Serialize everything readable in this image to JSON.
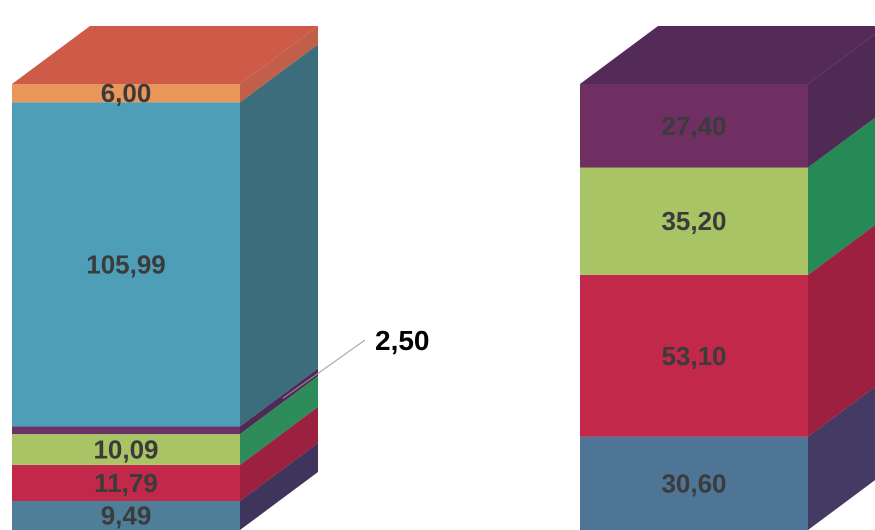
{
  "chart_data": {
    "type": "bar",
    "stacked": true,
    "three_d": true,
    "legend": "none",
    "grid": false,
    "axes_visible": false,
    "bars": [
      {
        "segments": [
          {
            "value": 9.49,
            "label": "9,49",
            "color": "#4f7f98",
            "side": "#3f345c"
          },
          {
            "value": 11.79,
            "label": "11,79",
            "color": "#c1284a",
            "side": "#9c2040"
          },
          {
            "value": 10.09,
            "label": "10,09",
            "color": "#a8c464",
            "side": "#2e8b5a"
          },
          {
            "value": 2.5,
            "label": "2,50",
            "color": "#6b3466",
            "side": "#4e2a55",
            "callout": true
          },
          {
            "value": 105.99,
            "label": "105,99",
            "color": "#4e9eb7",
            "side": "#3b6d7c"
          },
          {
            "value": 6.0,
            "label": "6,00",
            "color": "#e8965a",
            "side": "#c25f4a",
            "top": "#cd5b48"
          }
        ]
      },
      {
        "segments": [
          {
            "value": 30.6,
            "label": "30,60",
            "color": "#4f7596",
            "side": "#443a63"
          },
          {
            "value": 53.1,
            "label": "53,10",
            "color": "#c1284a",
            "side": "#9d2040"
          },
          {
            "value": 35.2,
            "label": "35,20",
            "color": "#a8c464",
            "side": "#268a57"
          },
          {
            "value": 27.4,
            "label": "27,40",
            "color": "#6f2f62",
            "side": "#4f2a55",
            "top": "#532a58"
          }
        ]
      }
    ]
  }
}
